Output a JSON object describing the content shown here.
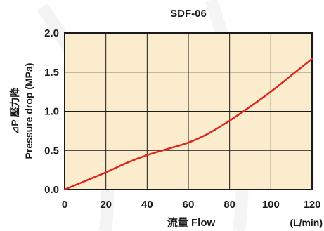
{
  "chart_data": {
    "type": "line",
    "title": "SDF-06",
    "xlabel": "流量  Flow",
    "xunit": "(L/min)",
    "ylabel_line1": "⊿P 壓力降",
    "ylabel_line2": "Pressure drop (MPa)",
    "xlim": [
      0,
      120
    ],
    "ylim": [
      0,
      2.0
    ],
    "x_ticks": [
      0,
      20,
      40,
      60,
      80,
      100,
      120
    ],
    "y_ticks": [
      0.0,
      0.5,
      1.0,
      1.5,
      2.0
    ],
    "x_tick_labels": [
      "0",
      "20",
      "40",
      "60",
      "80",
      "100",
      "120"
    ],
    "y_tick_labels": [
      "0.0",
      "0.5",
      "1.0",
      "1.5",
      "2.0"
    ],
    "grid": true,
    "plot_background": "#fbeccd",
    "series": [
      {
        "color": "#e0261b",
        "x": [
          0,
          10,
          20,
          30,
          40,
          50,
          60,
          70,
          80,
          90,
          100,
          110,
          120
        ],
        "y": [
          0.0,
          0.11,
          0.22,
          0.34,
          0.44,
          0.52,
          0.6,
          0.72,
          0.88,
          1.06,
          1.25,
          1.46,
          1.67
        ]
      }
    ]
  }
}
